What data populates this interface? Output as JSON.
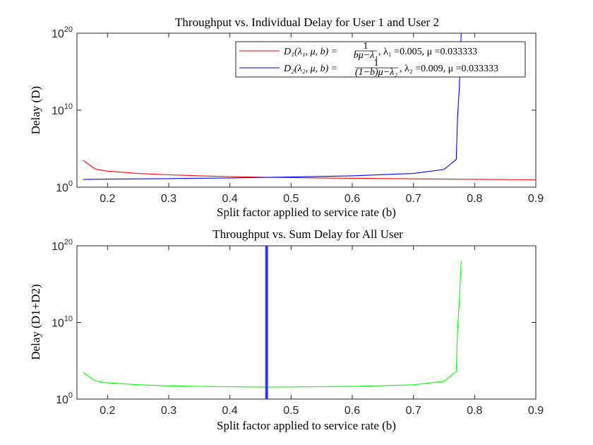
{
  "colors": {
    "user1": "#ff0000",
    "user2": "#0000ff",
    "sum": "#00ff00",
    "optimum": "#3333ff",
    "axis": "#262626"
  },
  "chart_data": [
    {
      "type": "line",
      "title": "Throughput vs. Individual Delay for User 1 and User 2",
      "xlabel": "Split factor applied to service rate (b)",
      "ylabel": "Delay (D)",
      "xlim": [
        0.15,
        0.9
      ],
      "ylim": [
        1,
        1e+20
      ],
      "yscale": "log",
      "xticks": [
        0.2,
        0.3,
        0.4,
        0.5,
        0.6,
        0.7,
        0.8,
        0.9
      ],
      "xtick_labels": [
        "0.2",
        "0.3",
        "0.4",
        "0.5",
        "0.6",
        "0.7",
        "0.8",
        "0.9"
      ],
      "yticks": [
        {
          "base": "10",
          "exp": "0",
          "value": 1
        },
        {
          "base": "10",
          "exp": "10",
          "value": 10000000000.0
        },
        {
          "base": "10",
          "exp": "20",
          "value": 1e+20
        }
      ],
      "legend_position": "top-right",
      "series": [
        {
          "name": "D1(λ1,μ,b) = 1/(bμ−λ1), λ1 =0.005, μ =0.033333",
          "color_key": "user1",
          "x": [
            0.16,
            0.18,
            0.2,
            0.25,
            0.3,
            0.35,
            0.4,
            0.46,
            0.5,
            0.6,
            0.7,
            0.8,
            0.9
          ],
          "y": [
            3000,
            230,
            120,
            60,
            40,
            30,
            24,
            19,
            17.6,
            14.3,
            12,
            10.4,
            9.2
          ]
        },
        {
          "name": "D2(λ2,μ,b) = 1/((1−b)μ−λ2), λ2 =0.009, μ =0.033333",
          "color_key": "user2",
          "x": [
            0.16,
            0.2,
            0.3,
            0.4,
            0.46,
            0.5,
            0.6,
            0.7,
            0.75,
            0.77,
            0.772,
            0.775,
            0.778
          ],
          "y": [
            10,
            11,
            13,
            16,
            19,
            21,
            30,
            60,
            200,
            4000,
            1000000000.0,
            10000000000000.0,
            1e+20
          ]
        }
      ],
      "legend_entries": [
        {
          "main": "D₁(λ₁, μ, b) = ",
          "num": "1",
          "den": "bμ−λ₁",
          "tail": ", λ₁ =0.005, μ =0.033333"
        },
        {
          "main": "D₂(λ₂, μ, b) = ",
          "num": "1",
          "den": "(1−b)μ−λ₂",
          "tail": ", λ₂ =0.009, μ =0.033333"
        }
      ]
    },
    {
      "type": "line",
      "title": "Throughput vs. Sum Delay for All User",
      "xlabel": "Split factor applied to service rate (b)",
      "ylabel": "Delay (D1+D2)",
      "xlim": [
        0.15,
        0.9
      ],
      "ylim": [
        1,
        1e+20
      ],
      "yscale": "log",
      "xticks": [
        0.2,
        0.3,
        0.4,
        0.5,
        0.6,
        0.7,
        0.8,
        0.9
      ],
      "xtick_labels": [
        "0.2",
        "0.3",
        "0.4",
        "0.5",
        "0.6",
        "0.7",
        "0.8",
        "0.9"
      ],
      "yticks": [
        {
          "base": "10",
          "exp": "0",
          "value": 1
        },
        {
          "base": "10",
          "exp": "10",
          "value": 10000000000.0
        },
        {
          "base": "10",
          "exp": "20",
          "value": 1e+20
        }
      ],
      "series": [
        {
          "color_key": "sum",
          "x": [
            0.16,
            0.18,
            0.2,
            0.25,
            0.3,
            0.35,
            0.4,
            0.46,
            0.5,
            0.6,
            0.7,
            0.75,
            0.77,
            0.772,
            0.775,
            0.778
          ],
          "y": [
            3010,
            240,
            130,
            75,
            53,
            46,
            40,
            38,
            38.6,
            44.3,
            72,
            210,
            4000,
            1000000000.0,
            10000000000000.0,
            1e+18
          ]
        }
      ],
      "vline": {
        "x": 0.46,
        "color_key": "optimum"
      }
    }
  ]
}
